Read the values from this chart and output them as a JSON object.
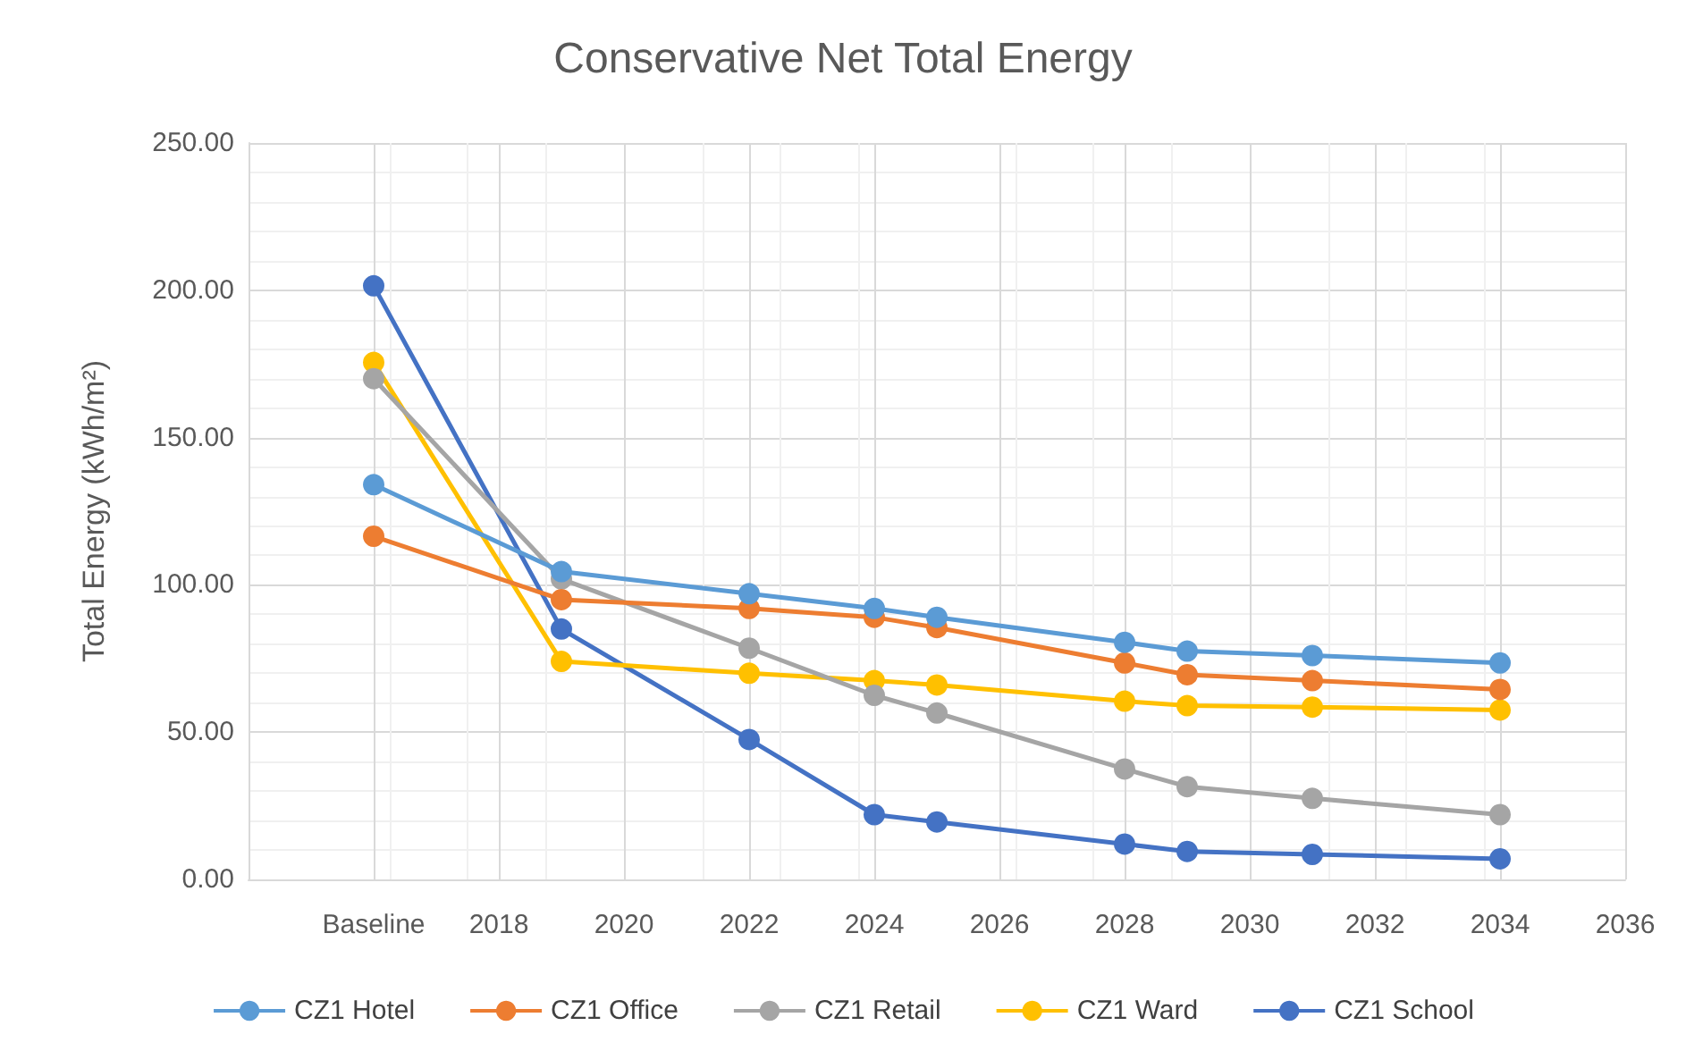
{
  "chart_data": {
    "type": "line",
    "title": "Conservative Net Total Energy",
    "ylabel": "Total Energy (kWh/m²)",
    "x": [
      2016,
      2019,
      2022,
      2024,
      2025,
      2028,
      2029,
      2031,
      2034
    ],
    "xlim": [
      2014,
      2036
    ],
    "xticks": [
      {
        "value": 2016,
        "label": "Baseline"
      },
      2018,
      2020,
      2022,
      2024,
      2026,
      2028,
      2030,
      2032,
      2034,
      2036
    ],
    "ylim": [
      0,
      250
    ],
    "yticks": [
      {
        "value": 0,
        "label": "0.00"
      },
      {
        "value": 50,
        "label": "50.00"
      },
      {
        "value": 100,
        "label": "100.00"
      },
      {
        "value": 150,
        "label": "150.00"
      },
      {
        "value": 200,
        "label": "200.00"
      },
      {
        "value": 250,
        "label": "250.00"
      }
    ],
    "series": [
      {
        "name": "CZ1 Hotel",
        "color": "#5b9bd5",
        "values": [
          134,
          104.5,
          97,
          92,
          89,
          80.5,
          77.5,
          76,
          73.5
        ]
      },
      {
        "name": "CZ1 Office",
        "color": "#ed7d31",
        "values": [
          116.5,
          95,
          92,
          89,
          85.5,
          73.5,
          69.5,
          67.5,
          64.5
        ]
      },
      {
        "name": "CZ1 Retail",
        "color": "#a5a5a5",
        "values": [
          170,
          102,
          78.5,
          62.5,
          56.5,
          37.5,
          31.5,
          27.5,
          22
        ]
      },
      {
        "name": "CZ1 Ward",
        "color": "#ffc000",
        "values": [
          175.5,
          74,
          70,
          67.5,
          66,
          60.5,
          59,
          58.5,
          57.5
        ]
      },
      {
        "name": "CZ1 School",
        "color": "#4472c4",
        "values": [
          201.5,
          85,
          47.5,
          22,
          19.5,
          12,
          9.5,
          8.5,
          7
        ]
      }
    ],
    "grid": true,
    "legend": "bottom",
    "marker": "circle",
    "line_style": "solid"
  }
}
